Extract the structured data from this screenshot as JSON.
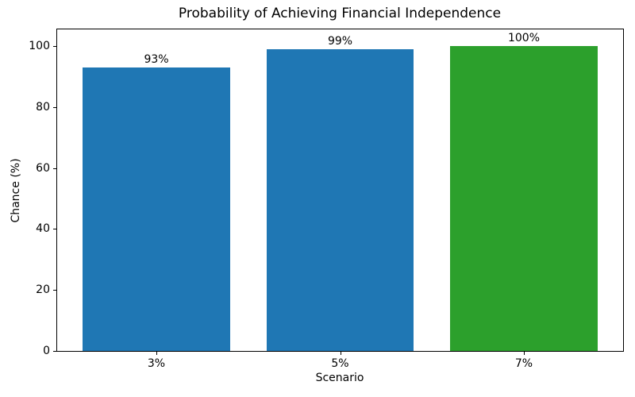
{
  "chart_data": {
    "type": "bar",
    "title": "Probability of Achieving Financial Independence",
    "xlabel": "Scenario",
    "ylabel": "Chance (%)",
    "categories": [
      "3%",
      "5%",
      "7%"
    ],
    "values": [
      93,
      99,
      100
    ],
    "bar_labels": [
      "93%",
      "99%",
      "100%"
    ],
    "bar_colors": [
      "#1f77b4",
      "#1f77b4",
      "#2ca02c"
    ],
    "yticks": [
      0,
      20,
      40,
      60,
      80,
      100
    ],
    "ylim": [
      0,
      105.5
    ],
    "xlim_units": [
      -0.54,
      2.54
    ],
    "bar_width_units": 0.8,
    "grid": false,
    "legend": null,
    "frame_color": "#000000",
    "background_color": "#ffffff"
  }
}
